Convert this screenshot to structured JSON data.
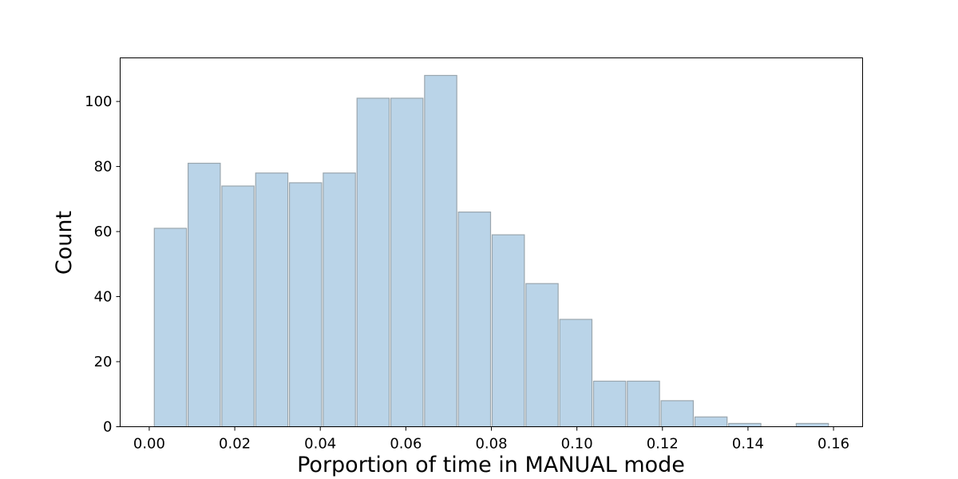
{
  "chart_data": {
    "type": "bar",
    "title": "",
    "xlabel": "Porportion of time in MANUAL mode",
    "ylabel": "Count",
    "bins": [
      {
        "x0": 0.001,
        "x1": 0.0089,
        "count": 61
      },
      {
        "x0": 0.0089,
        "x1": 0.0168,
        "count": 81
      },
      {
        "x0": 0.0168,
        "x1": 0.0247,
        "count": 74
      },
      {
        "x0": 0.0247,
        "x1": 0.0326,
        "count": 78
      },
      {
        "x0": 0.0326,
        "x1": 0.0405,
        "count": 75
      },
      {
        "x0": 0.0405,
        "x1": 0.0484,
        "count": 78
      },
      {
        "x0": 0.0484,
        "x1": 0.0563,
        "count": 101
      },
      {
        "x0": 0.0563,
        "x1": 0.0642,
        "count": 101
      },
      {
        "x0": 0.0642,
        "x1": 0.0721,
        "count": 108
      },
      {
        "x0": 0.0721,
        "x1": 0.08,
        "count": 66
      },
      {
        "x0": 0.08,
        "x1": 0.0879,
        "count": 59
      },
      {
        "x0": 0.0879,
        "x1": 0.0958,
        "count": 44
      },
      {
        "x0": 0.0958,
        "x1": 0.1037,
        "count": 33
      },
      {
        "x0": 0.1037,
        "x1": 0.1116,
        "count": 14
      },
      {
        "x0": 0.1116,
        "x1": 0.1195,
        "count": 14
      },
      {
        "x0": 0.1195,
        "x1": 0.1274,
        "count": 8
      },
      {
        "x0": 0.1274,
        "x1": 0.1353,
        "count": 3
      },
      {
        "x0": 0.1353,
        "x1": 0.1432,
        "count": 1
      },
      {
        "x0": 0.1432,
        "x1": 0.1511,
        "count": 0
      },
      {
        "x0": 0.1511,
        "x1": 0.159,
        "count": 1
      }
    ],
    "xlim": [
      -0.0068,
      0.1668
    ],
    "ylim": [
      0,
      113.4
    ],
    "xticks": [
      0.0,
      0.02,
      0.04,
      0.06,
      0.08,
      0.1,
      0.12,
      0.14,
      0.16
    ],
    "xtick_labels": [
      "0.00",
      "0.02",
      "0.04",
      "0.06",
      "0.08",
      "0.10",
      "0.12",
      "0.14",
      "0.16"
    ],
    "yticks": [
      0,
      20,
      40,
      60,
      80,
      100
    ],
    "ytick_labels": [
      "0",
      "20",
      "40",
      "60",
      "80",
      "100"
    ],
    "grid": false,
    "legend": "none",
    "colors": {
      "bar_fill": "#bad4e8",
      "bar_edge": "#9aa6ae",
      "axis": "#000000"
    }
  }
}
